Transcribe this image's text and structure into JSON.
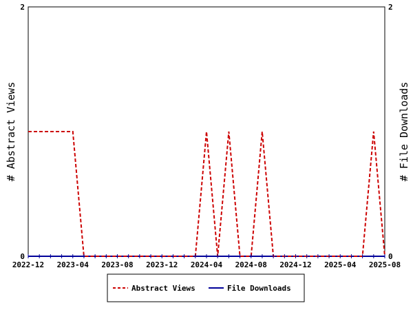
{
  "chart_data": {
    "type": "line",
    "x_tick_labels": [
      "2022-12",
      "2023-04",
      "2023-08",
      "2023-12",
      "2024-04",
      "2024-08",
      "2024-12",
      "2025-04",
      "2025-08"
    ],
    "x_range": [
      "2022-12",
      "2025-08"
    ],
    "ylabel_left": "# Abstract Views",
    "ylabel_right": "# File Downloads",
    "ylim_left": [
      0,
      2
    ],
    "ylim_right": [
      0,
      2
    ],
    "y_ticks_left": [
      "0",
      "2"
    ],
    "y_ticks_right": [
      "0",
      "2"
    ],
    "grid": false,
    "legend_position": "bottom-center",
    "series": [
      {
        "name": "Abstract Views",
        "axis": "left",
        "color": "#cc0000",
        "style": "dashed",
        "points": [
          [
            "2022-12",
            1
          ],
          [
            "2023-01",
            1
          ],
          [
            "2023-02",
            1
          ],
          [
            "2023-03",
            1
          ],
          [
            "2023-04",
            1
          ],
          [
            "2023-05",
            0
          ],
          [
            "2023-06",
            0
          ],
          [
            "2023-07",
            0
          ],
          [
            "2023-08",
            0
          ],
          [
            "2023-09",
            0
          ],
          [
            "2023-10",
            0
          ],
          [
            "2023-11",
            0
          ],
          [
            "2023-12",
            0
          ],
          [
            "2024-01",
            0
          ],
          [
            "2024-02",
            0
          ],
          [
            "2024-03",
            0
          ],
          [
            "2024-04",
            1
          ],
          [
            "2024-05",
            0
          ],
          [
            "2024-06",
            1
          ],
          [
            "2024-07",
            0
          ],
          [
            "2024-08",
            0
          ],
          [
            "2024-09",
            1
          ],
          [
            "2024-10",
            0
          ],
          [
            "2024-11",
            0
          ],
          [
            "2024-12",
            0
          ],
          [
            "2025-01",
            0
          ],
          [
            "2025-02",
            0
          ],
          [
            "2025-03",
            0
          ],
          [
            "2025-04",
            0
          ],
          [
            "2025-05",
            0
          ],
          [
            "2025-06",
            0
          ],
          [
            "2025-07",
            1
          ],
          [
            "2025-08",
            0
          ]
        ]
      },
      {
        "name": "File Downloads",
        "axis": "right",
        "color": "#000099",
        "style": "solid",
        "points": [
          [
            "2022-12",
            0
          ],
          [
            "2025-08",
            0
          ]
        ]
      }
    ]
  }
}
